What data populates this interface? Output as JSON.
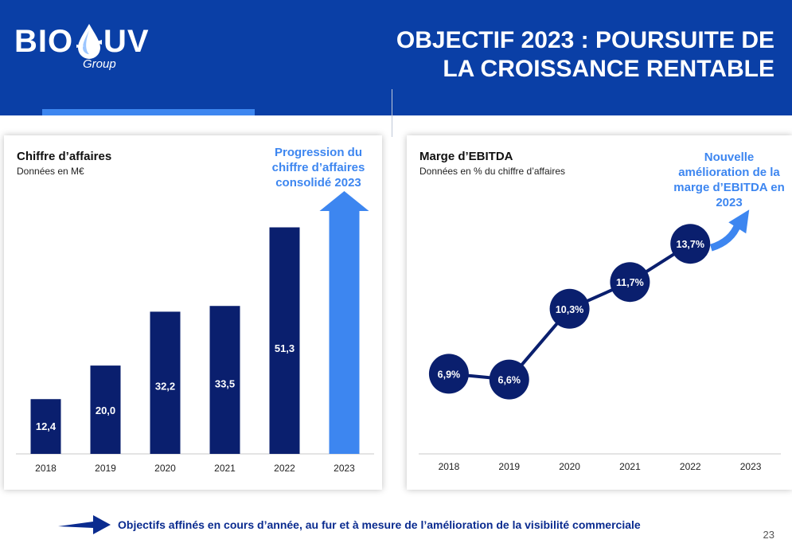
{
  "logo": {
    "left": "BIO",
    "right": "UV",
    "sub": "Group"
  },
  "slide_title": "OBJECTIF 2023 : POURSUITE DE LA CROISSANCE RENTABLE",
  "revenue_panel": {
    "title": "Chiffre d’affaires",
    "subtitle": "Données en M€",
    "callout": "Progression du chiffre d’affaires consolidé 2023"
  },
  "ebitda_panel": {
    "title": "Marge d’EBITDA",
    "subtitle": "Données en % du chiffre d’affaires",
    "callout": "Nouvelle amélioration de la marge d’EBITDA en 2023"
  },
  "footer": {
    "text": "Objectifs affinés en cours d’année, au fur et à mesure de l’amélioration de la visibilité commerciale"
  },
  "page_number": "23",
  "colors": {
    "navy": "#0a1f6e",
    "blue": "#0a3fa6",
    "light_blue": "#3d86f0"
  },
  "chart_data": [
    {
      "type": "bar",
      "title": "Chiffre d’affaires",
      "ylabel": "Données en M€",
      "categories": [
        "2018",
        "2019",
        "2020",
        "2021",
        "2022",
        "2023"
      ],
      "values": [
        12.4,
        20.0,
        32.2,
        33.5,
        51.3,
        null
      ],
      "labels": [
        "12,4",
        "20,0",
        "32,2",
        "33,5",
        "51,3",
        ""
      ],
      "ylim": [
        0,
        55
      ],
      "annotation": "2023: upward arrow (growth target)"
    },
    {
      "type": "line",
      "title": "Marge d’EBITDA",
      "ylabel": "Données en % du chiffre d’affaires",
      "categories": [
        "2018",
        "2019",
        "2020",
        "2021",
        "2022",
        "2023"
      ],
      "values": [
        6.9,
        6.6,
        10.3,
        11.7,
        13.7,
        null
      ],
      "labels": [
        "6,9%",
        "6,6%",
        "10,3%",
        "11,7%",
        "13,7%",
        ""
      ],
      "ylim": [
        5,
        15
      ],
      "annotation": "2023: upward arrow (improvement target)"
    }
  ]
}
